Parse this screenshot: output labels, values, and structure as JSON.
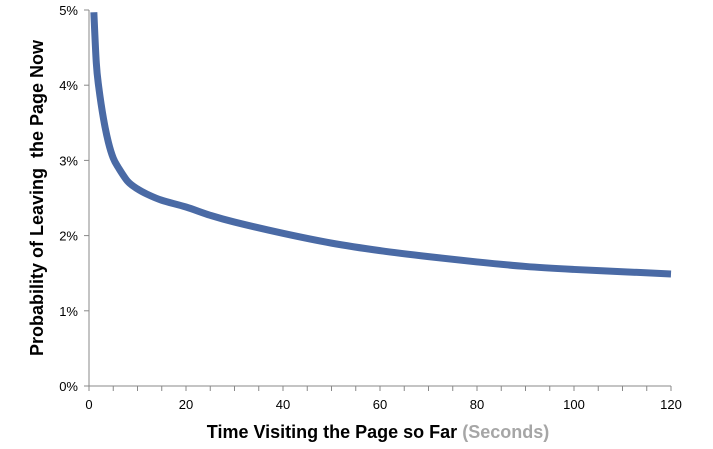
{
  "chart_data": {
    "type": "line",
    "title": "",
    "xlabel": "Time Visiting the Page so Far",
    "xlabel_unit": "(Seconds)",
    "ylabel": "Probability of Leaving  the Page Now",
    "xlim": [
      0,
      120
    ],
    "ylim": [
      0,
      0.05
    ],
    "x_ticks": [
      0,
      20,
      40,
      60,
      80,
      100,
      120
    ],
    "x_tick_labels": [
      "0",
      "20",
      "40",
      "60",
      "80",
      "100",
      "120"
    ],
    "x_minor_tick_step": 5,
    "y_ticks": [
      0,
      0.01,
      0.02,
      0.03,
      0.04,
      0.05
    ],
    "y_tick_labels": [
      "0%",
      "1%",
      "2%",
      "3%",
      "4%",
      "5%"
    ],
    "grid": false,
    "legend": "none",
    "series": [
      {
        "color": "#4a6aa5",
        "x": [
          1,
          1.5,
          2,
          3,
          4,
          5,
          6,
          8,
          10,
          12,
          15,
          20,
          25,
          30,
          40,
          50,
          60,
          70,
          80,
          90,
          100,
          110,
          120
        ],
        "values": [
          0.0497,
          0.043,
          0.0398,
          0.0355,
          0.0324,
          0.0303,
          0.0291,
          0.0272,
          0.0262,
          0.0255,
          0.0247,
          0.0238,
          0.0227,
          0.0218,
          0.0203,
          0.019,
          0.018,
          0.0172,
          0.0165,
          0.0159,
          0.0155,
          0.0152,
          0.0149
        ]
      }
    ]
  }
}
